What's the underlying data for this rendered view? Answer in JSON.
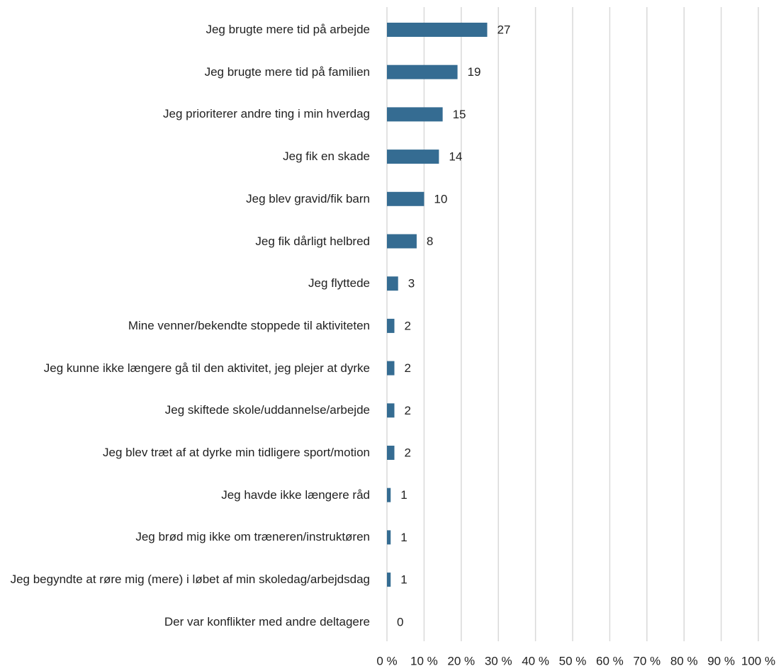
{
  "chart_data": {
    "type": "barh",
    "categories": [
      "Jeg brugte mere tid på arbejde",
      "Jeg brugte mere tid på familien",
      "Jeg prioriterer andre ting i min hverdag",
      "Jeg fik en skade",
      "Jeg blev gravid/fik barn",
      "Jeg fik dårligt helbred",
      "Jeg flyttede",
      "Mine venner/bekendte stoppede til aktiviteten",
      "Jeg kunne ikke længere gå til den aktivitet, jeg plejer at dyrke",
      "Jeg skiftede skole/uddannelse/arbejde",
      "Jeg blev træt af at dyrke min tidligere sport/motion",
      "Jeg havde ikke længere råd",
      "Jeg brød mig ikke om træneren/instruktøren",
      "Jeg begyndte at røre mig (mere) i løbet af min skoledag/arbejdsdag",
      "Der var konflikter med andre deltagere"
    ],
    "values": [
      27,
      19,
      15,
      14,
      10,
      8,
      3,
      2,
      2,
      2,
      2,
      1,
      1,
      1,
      0
    ],
    "color": "#356c92",
    "xlim": [
      0,
      100
    ],
    "xticks": [
      {
        "value": 0,
        "label": "0 %"
      },
      {
        "value": 10,
        "label": "10 %"
      },
      {
        "value": 20,
        "label": "20 %"
      },
      {
        "value": 30,
        "label": "30 %"
      },
      {
        "value": 40,
        "label": "40 %"
      },
      {
        "value": 50,
        "label": "50 %"
      },
      {
        "value": 60,
        "label": "60 %"
      },
      {
        "value": 70,
        "label": "70 %"
      },
      {
        "value": 80,
        "label": "80 %"
      },
      {
        "value": 90,
        "label": "90 %"
      },
      {
        "value": 100,
        "label": "100 %"
      }
    ],
    "grid": true
  }
}
